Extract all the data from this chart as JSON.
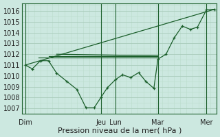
{
  "xlabel": "Pression niveau de la mer( hPa )",
  "bg_color": "#cce8e0",
  "grid_color_major": "#aaccbb",
  "grid_color_minor": "#bbddcc",
  "line_color": "#1a5e2a",
  "ylim": [
    1006.5,
    1016.7
  ],
  "yticks": [
    1007,
    1008,
    1009,
    1010,
    1011,
    1012,
    1013,
    1014,
    1015,
    1016
  ],
  "xlim": [
    0,
    9.6
  ],
  "day_labels": [
    "Dim",
    "Jeu",
    "Lun",
    "Mar",
    "Mer"
  ],
  "day_x": [
    0.15,
    3.9,
    4.6,
    6.7,
    9.1
  ],
  "vline_x": [
    0.15,
    3.9,
    4.6,
    6.7,
    9.1
  ],
  "diag_line": {
    "x": [
      0.15,
      9.5
    ],
    "y": [
      1011.0,
      1016.15
    ]
  },
  "flat_lines": [
    {
      "x": [
        0.8,
        6.7
      ],
      "y": [
        1011.7,
        1011.7
      ]
    },
    {
      "x": [
        1.3,
        6.7
      ],
      "y": [
        1011.85,
        1011.85
      ]
    },
    {
      "x": [
        1.7,
        6.7
      ],
      "y": [
        1012.0,
        1011.85
      ]
    }
  ],
  "wavy_line": {
    "x": [
      0.15,
      0.5,
      0.9,
      1.3,
      1.7,
      2.2,
      2.7,
      3.15,
      3.55,
      3.9,
      4.2,
      4.6,
      4.95,
      5.35,
      5.75,
      6.1,
      6.5,
      6.7,
      7.1,
      7.5,
      7.9,
      8.3,
      8.65,
      9.1,
      9.5
    ],
    "y": [
      1011.0,
      1010.65,
      1011.4,
      1011.4,
      1010.25,
      1009.5,
      1008.75,
      1007.05,
      1007.05,
      1008.05,
      1008.9,
      1009.65,
      1010.1,
      1009.85,
      1010.3,
      1009.5,
      1008.85,
      1011.55,
      1012.0,
      1013.5,
      1014.6,
      1014.3,
      1014.5,
      1016.1,
      1016.15
    ]
  },
  "fontsize_label": 8,
  "fontsize_tick": 7
}
